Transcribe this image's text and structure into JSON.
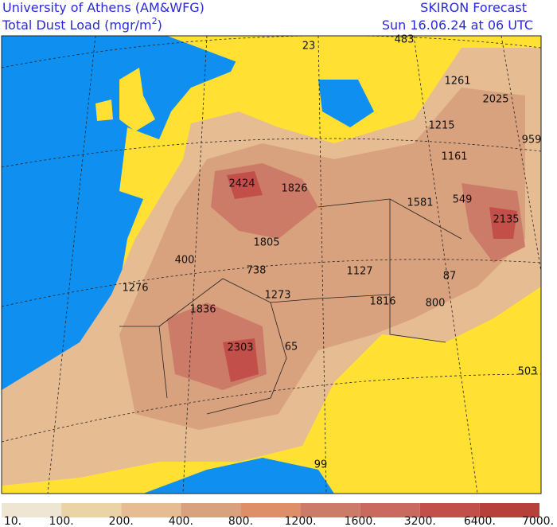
{
  "header": {
    "institution": "University of Athens (AM&WFG)",
    "quantity": {
      "text": "Total Dust Load (mgr/m",
      "superscript": "2",
      "close": ")"
    },
    "product": "SKIRON Forecast",
    "valid_time": "Sun 16.06.24 at 06 UTC"
  },
  "map_labels": [
    483,
    23,
    1261,
    2025,
    1215,
    959,
    1161,
    2424,
    1826,
    1581,
    549,
    2135,
    1805,
    400,
    738,
    1127,
    87,
    1276,
    1273,
    1816,
    800,
    1836,
    2303,
    65,
    503,
    99
  ],
  "legend": {
    "labels": [
      "10.",
      "100.",
      "200.",
      "400.",
      "800.",
      "1200.",
      "1600.",
      "3200.",
      "6400.",
      "7000."
    ],
    "colors": [
      "#efe5d3",
      "#ead3a4",
      "#e6bc93",
      "#d9a27f",
      "#df8f68",
      "#cc7b68",
      "#c96960",
      "#c24f4a",
      "#b8403b"
    ]
  }
}
